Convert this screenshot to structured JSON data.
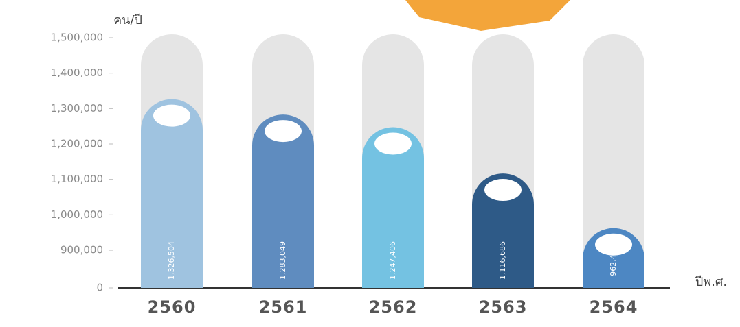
{
  "chart_data": {
    "type": "bar",
    "y_label": "คน/ปี",
    "x_label": "ปีพ.ศ.",
    "categories": [
      "2560",
      "2561",
      "2562",
      "2563",
      "2564"
    ],
    "values": [
      1326504,
      1283049,
      1247406,
      1116686,
      962407
    ],
    "value_labels": [
      "1,326,504",
      "1,283,049",
      "1,247,406",
      "1,116,686",
      "962,407"
    ],
    "colors": [
      "#9fc3e0",
      "#5f8cbf",
      "#74c2e2",
      "#2e5a87",
      "#4d87c3"
    ],
    "ylim": [
      0,
      1500000
    ],
    "yticks": [
      {
        "value": 0,
        "label": "0"
      },
      {
        "value": 900000,
        "label": "900,000"
      },
      {
        "value": 1000000,
        "label": "1,000,000"
      },
      {
        "value": 1100000,
        "label": "1,100,000"
      },
      {
        "value": 1200000,
        "label": "1,200,000"
      },
      {
        "value": 1300000,
        "label": "1,300,000"
      },
      {
        "value": 1400000,
        "label": "1,400,000"
      },
      {
        "value": 1500000,
        "label": "1,500,000"
      }
    ],
    "broken_axis": true
  }
}
